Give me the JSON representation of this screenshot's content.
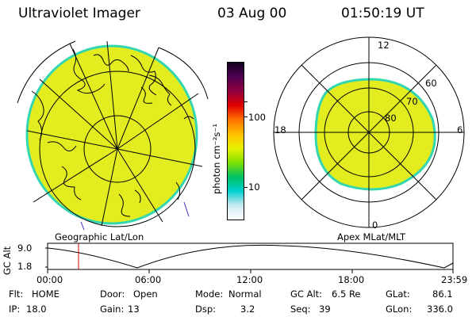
{
  "header": {
    "instrument": "Ultraviolet Imager",
    "date": "03 Aug 00",
    "time": "01:50:19 UT"
  },
  "colorbar": {
    "unit_label": "photon cm⁻²s⁻¹",
    "tick_100": "100",
    "tick_10": "10",
    "stops": [
      "#ffffff",
      "#c8e8f0",
      "#00d0d0",
      "#00c060",
      "#80e000",
      "#e8f000",
      "#ffc000",
      "#ff7000",
      "#e00000",
      "#900040",
      "#500050",
      "#100020"
    ]
  },
  "polar_plot": {
    "labels": {
      "top": "12",
      "left": "18",
      "right": "6",
      "bottom": "0"
    },
    "rings": [
      "80",
      "70",
      "60"
    ],
    "fill_color": "#e3ec1e",
    "edge_color": "#33d6b0"
  },
  "map_labels": {
    "left": "Geographic Lat/Lon",
    "right": "Apex MLat/MLT"
  },
  "timeline": {
    "ylabel": "GC Alt",
    "ticks_y": [
      "9.0",
      "1.8"
    ],
    "ticks_x": [
      "00:00",
      "06:00",
      "12:00",
      "18:00",
      "23:59"
    ],
    "current_marker_time": "01:50"
  },
  "info": {
    "row1": {
      "flt_label": "Flt:",
      "flt_value": "HOME",
      "door_label": "Door:",
      "door_value": "Open",
      "mode_label": "Mode:",
      "mode_value": "Normal",
      "gcalt_label": "GC Alt:",
      "gcalt_value": "6.5 Re",
      "glat_label": "GLat:",
      "glat_value": "86.1"
    },
    "row2": {
      "ip_label": "IP:",
      "ip_value": "18.0",
      "gain_label": "Gain:",
      "gain_value": "13",
      "dsp_label": "Dsp:",
      "dsp_value": "3.2",
      "seq_label": "Seq:",
      "seq_value": "39",
      "glon_label": "GLon:",
      "glon_value": "336.0"
    }
  }
}
